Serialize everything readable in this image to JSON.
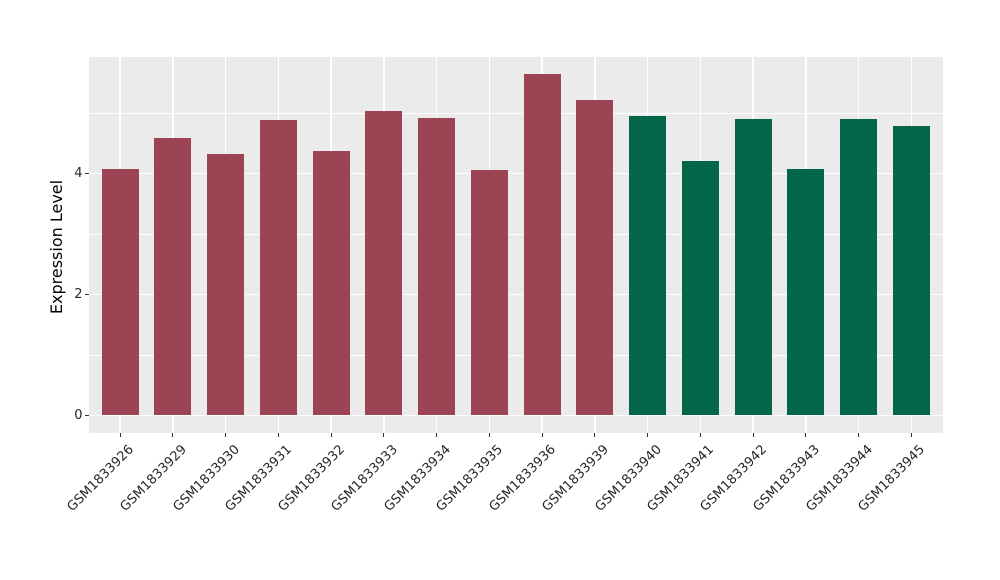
{
  "figure": {
    "kind": "bar-chart-figure"
  },
  "chart_data": {
    "type": "bar",
    "title": "",
    "xlabel": "",
    "ylabel": "Expression Level",
    "categories": [
      "GSM1833926",
      "GSM1833929",
      "GSM1833930",
      "GSM1833931",
      "GSM1833932",
      "GSM1833933",
      "GSM1833934",
      "GSM1833935",
      "GSM1833936",
      "GSM1833939",
      "GSM1833940",
      "GSM1833941",
      "GSM1833942",
      "GSM1833943",
      "GSM1833944",
      "GSM1833945"
    ],
    "values": [
      4.08,
      4.59,
      4.33,
      4.89,
      4.38,
      5.03,
      4.91,
      4.05,
      5.64,
      5.22,
      4.95,
      4.2,
      4.9,
      4.07,
      4.9,
      4.78
    ],
    "point_groups": [
      "maroon",
      "maroon",
      "maroon",
      "maroon",
      "maroon",
      "maroon",
      "maroon",
      "maroon",
      "maroon",
      "maroon",
      "green",
      "green",
      "green",
      "green",
      "green",
      "green"
    ],
    "group_colors": {
      "maroon": "#9C4453",
      "green": "#03664A"
    },
    "yticks": [
      0,
      2,
      4
    ],
    "minor_yticks": [
      1,
      3,
      5
    ],
    "ylim": [
      -0.29,
      5.93
    ],
    "grid": "on",
    "legend": "none",
    "panel_bg": "#EBEBEB",
    "grid_color": "#FFFFFF",
    "bar_width_fraction": 0.7
  }
}
